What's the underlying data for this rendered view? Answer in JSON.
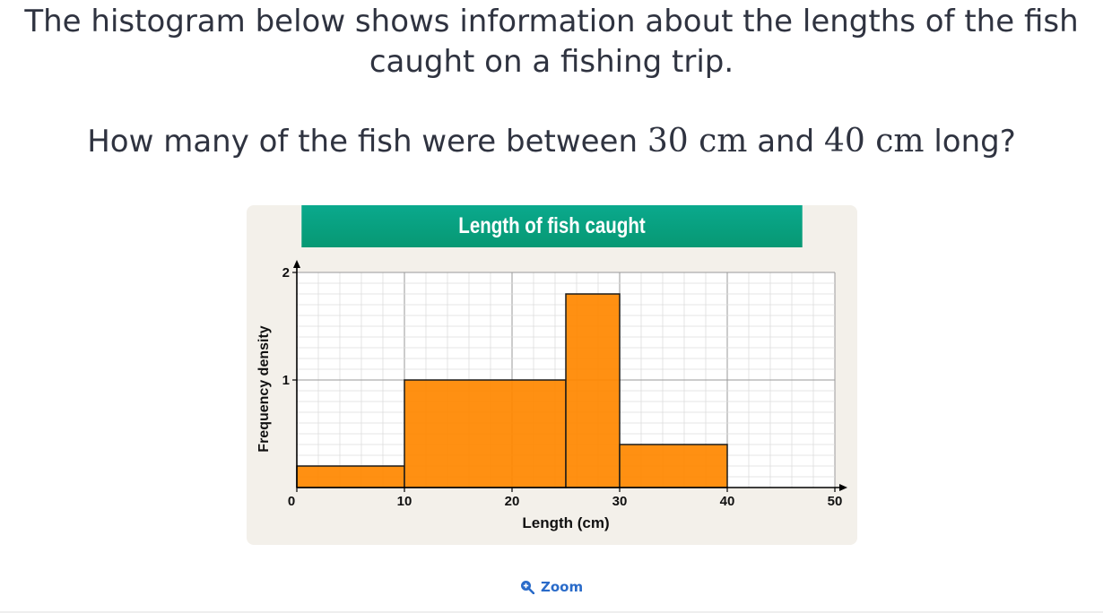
{
  "question": {
    "intro_line1": "The histogram below shows information about the lengths of the fish",
    "intro_line2": "caught on a fishing trip.",
    "ask_prefix": "How many of the fish were between ",
    "ask_value1": "30 cm",
    "ask_middle": " and ",
    "ask_value2": "40 cm",
    "ask_suffix": " long?"
  },
  "chart_data": {
    "type": "bar",
    "title": "Length of fish caught",
    "xlabel": "Length (cm)",
    "ylabel": "Frequency density",
    "xlim": [
      0,
      50
    ],
    "ylim": [
      0,
      2
    ],
    "x_ticks": [
      "0",
      "10",
      "20",
      "30",
      "40",
      "50"
    ],
    "y_ticks": [
      "1",
      "2"
    ],
    "grid": true,
    "bins": [
      {
        "x0": 0,
        "x1": 10,
        "value": 0.2
      },
      {
        "x0": 10,
        "x1": 25,
        "value": 1.0
      },
      {
        "x0": 25,
        "x1": 30,
        "value": 1.8
      },
      {
        "x0": 30,
        "x1": 40,
        "value": 0.4
      }
    ],
    "bar_color": "#ff8800",
    "header_color": "#089c7c"
  },
  "zoom": {
    "label": "Zoom",
    "icon": "zoom-in-icon",
    "color": "#2a6bc9"
  }
}
